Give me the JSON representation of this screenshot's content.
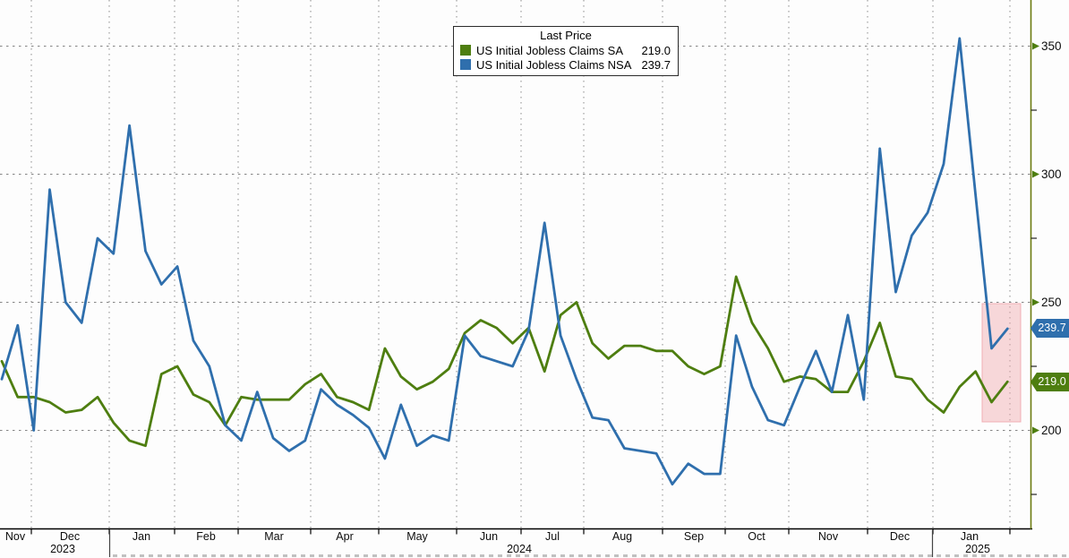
{
  "chart": {
    "legend": {
      "title": "Last Price",
      "items": [
        {
          "label": "US Initial Jobless Claims SA",
          "value": "219.0",
          "color": "#4e7e10"
        },
        {
          "label": "US Initial Jobless Claims NSA",
          "value": "239.7",
          "color": "#2f6fad"
        }
      ]
    },
    "y_axis": {
      "ticks": [
        "350",
        "300",
        "250",
        "200"
      ]
    },
    "x_axis": {
      "months": [
        "Nov",
        "Dec",
        "Jan",
        "Feb",
        "Mar",
        "Apr",
        "May",
        "Jun",
        "Jul",
        "Aug",
        "Sep",
        "Oct",
        "Nov",
        "Dec",
        "Jan"
      ],
      "years": [
        "2023",
        "2024",
        "2025"
      ]
    },
    "badges": [
      {
        "text": "239.7",
        "color": "#2f6fad"
      },
      {
        "text": "219.0",
        "color": "#4e7e10"
      }
    ],
    "colors": {
      "sa_line": "#4e7e10",
      "nsa_line": "#2f6fad",
      "y_axis_line": "#6b7a10",
      "x_axis_line": "#000000",
      "gridline": "#777777",
      "highlight_band": "#f0a9ae"
    }
  },
  "chart_data": {
    "type": "line",
    "title": "Last Price",
    "x_start": "Nov 2023",
    "x_end": "Jan 2025",
    "frequency": "weekly",
    "x_month_labels": [
      "Nov",
      "Dec",
      "Jan",
      "Feb",
      "Mar",
      "Apr",
      "May",
      "Jun",
      "Jul",
      "Aug",
      "Sep",
      "Oct",
      "Nov",
      "Dec",
      "Jan"
    ],
    "year_labels": [
      "2023",
      "2024",
      "2025"
    ],
    "ylim": [
      170,
      365
    ],
    "y_ticks": [
      200,
      250,
      300,
      350
    ],
    "y_minor_ticks": [
      175,
      225,
      275,
      325
    ],
    "axis_position": "right",
    "grid": true,
    "legend_position": "top-center",
    "series": [
      {
        "name": "US Initial Jobless Claims SA",
        "color": "#4e7e10",
        "last_price": 219.0,
        "values": [
          227,
          213,
          213,
          211,
          207,
          208,
          213,
          203,
          196,
          194,
          222,
          225,
          214,
          211,
          202,
          213,
          212,
          212,
          212,
          218,
          222,
          213,
          211,
          208,
          232,
          221,
          216,
          219,
          224,
          238,
          243,
          240,
          234,
          240,
          223,
          245,
          250,
          234,
          228,
          233,
          233,
          231,
          231,
          225,
          222,
          225,
          260,
          242,
          232,
          219,
          221,
          220,
          215,
          215,
          227,
          242,
          221,
          220,
          212,
          207,
          217,
          223,
          211,
          219
        ]
      },
      {
        "name": "US Initial Jobless Claims NSA",
        "color": "#2f6fad",
        "last_price": 239.7,
        "values": [
          220,
          241,
          200,
          294,
          250,
          242,
          275,
          269,
          319,
          270,
          257,
          264,
          235,
          225,
          202,
          196,
          215,
          197,
          192,
          196,
          216,
          210,
          206,
          201,
          189,
          210,
          194,
          198,
          196,
          237,
          229,
          227,
          225,
          239,
          281,
          237,
          220,
          205,
          204,
          193,
          192,
          191,
          179,
          187,
          183,
          183,
          237,
          217,
          204,
          202,
          217,
          231,
          215,
          245,
          212,
          310,
          254,
          276,
          285,
          304,
          353,
          292,
          232,
          239.7
        ]
      }
    ],
    "highlight_region": {
      "x_span": "Jan 2025 (last ~3 weeks)",
      "value_range": [
        204,
        250
      ],
      "color": "#f0a9ae"
    }
  }
}
